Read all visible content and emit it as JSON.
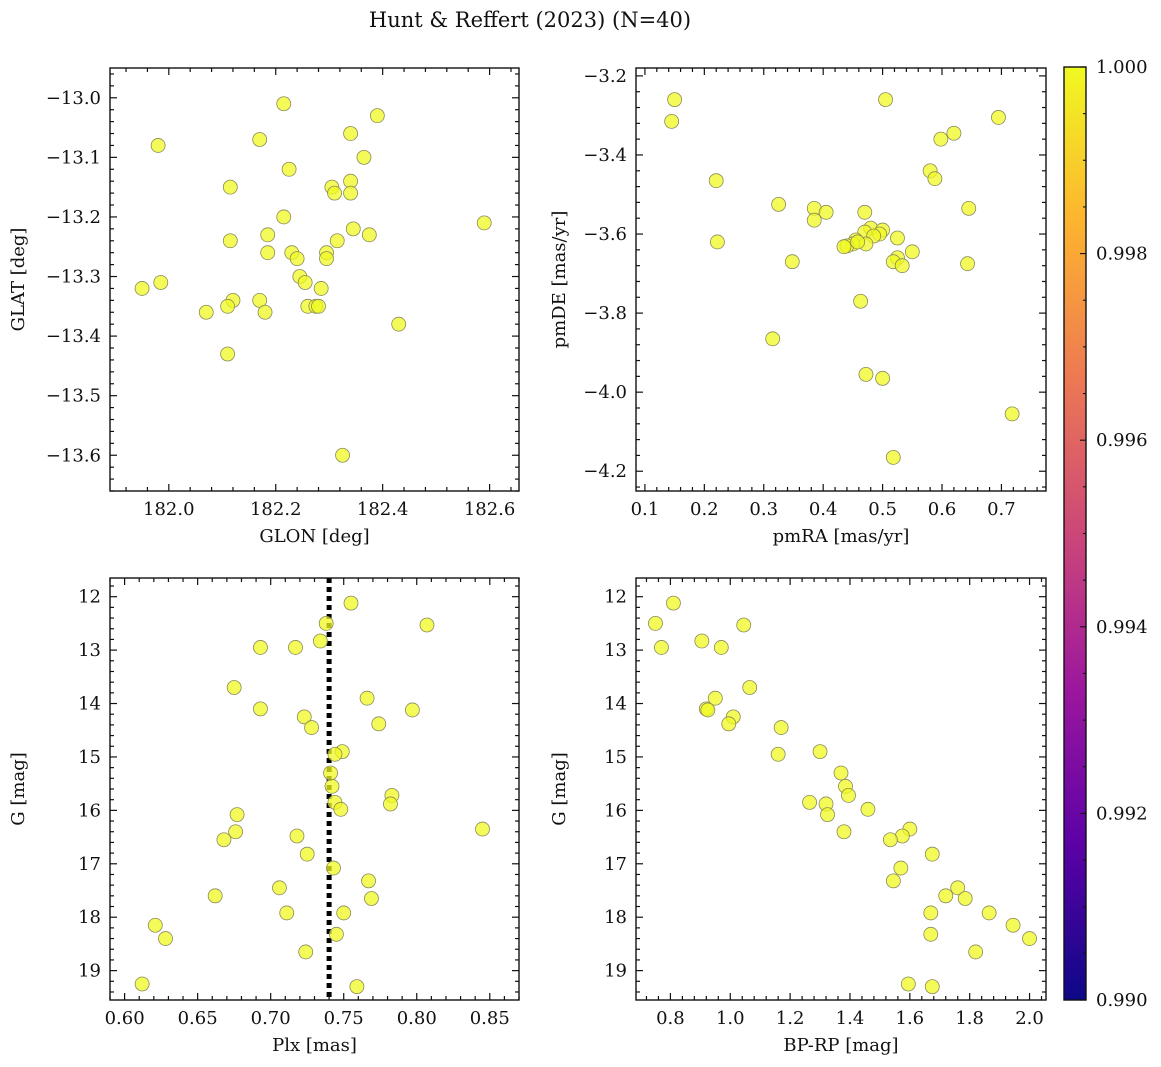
{
  "figure": {
    "title": "Hunt & Reffert (2023) (N=40)"
  },
  "colorbar": {
    "range": [
      0.99,
      1.0
    ],
    "ticks": [
      "1.000",
      "0.998",
      "0.996",
      "0.994",
      "0.992",
      "0.990"
    ],
    "tick_values": [
      1.0,
      0.998,
      0.996,
      0.994,
      0.992,
      0.99
    ],
    "colors": [
      "#f0f921",
      "#fdb32f",
      "#ed7953",
      "#cc4778",
      "#9c179e",
      "#5c01a6",
      "#0d0887"
    ]
  },
  "marker": {
    "color": "#f0f921",
    "edge": "#8a8a5a",
    "alpha": 0.75
  },
  "chart_data": [
    {
      "type": "scatter",
      "xlabel": "GLON [deg]",
      "ylabel": "GLAT [deg]",
      "xlim": [
        181.89,
        182.655
      ],
      "ylim": [
        -13.66,
        -12.95
      ],
      "xticks": [
        182.0,
        182.2,
        182.4,
        182.6
      ],
      "xtick_labels": [
        "182.0",
        "182.2",
        "182.4",
        "182.6"
      ],
      "yticks": [
        -13.0,
        -13.1,
        -13.2,
        -13.3,
        -13.4,
        -13.5,
        -13.6
      ],
      "ytick_labels": [
        "−13.0",
        "−13.1",
        "−13.2",
        "−13.3",
        "−13.4",
        "−13.5",
        "−13.6"
      ],
      "points": [
        [
          182.215,
          -13.01
        ],
        [
          182.39,
          -13.03
        ],
        [
          182.34,
          -13.06
        ],
        [
          182.17,
          -13.07
        ],
        [
          181.98,
          -13.08
        ],
        [
          182.365,
          -13.1
        ],
        [
          182.225,
          -13.12
        ],
        [
          182.115,
          -13.15
        ],
        [
          182.305,
          -13.15
        ],
        [
          182.34,
          -13.14
        ],
        [
          182.31,
          -13.16
        ],
        [
          182.34,
          -13.16
        ],
        [
          182.215,
          -13.2
        ],
        [
          182.59,
          -13.21
        ],
        [
          182.345,
          -13.22
        ],
        [
          182.185,
          -13.23
        ],
        [
          182.375,
          -13.23
        ],
        [
          182.115,
          -13.24
        ],
        [
          182.315,
          -13.24
        ],
        [
          182.185,
          -13.26
        ],
        [
          182.23,
          -13.26
        ],
        [
          182.295,
          -13.26
        ],
        [
          182.24,
          -13.27
        ],
        [
          182.295,
          -13.27
        ],
        [
          182.245,
          -13.3
        ],
        [
          182.255,
          -13.31
        ],
        [
          181.985,
          -13.31
        ],
        [
          182.285,
          -13.32
        ],
        [
          181.95,
          -13.32
        ],
        [
          182.12,
          -13.34
        ],
        [
          182.17,
          -13.34
        ],
        [
          182.11,
          -13.35
        ],
        [
          182.26,
          -13.35
        ],
        [
          182.275,
          -13.35
        ],
        [
          182.28,
          -13.35
        ],
        [
          182.07,
          -13.36
        ],
        [
          182.18,
          -13.36
        ],
        [
          182.43,
          -13.38
        ],
        [
          182.11,
          -13.43
        ],
        [
          182.325,
          -13.6
        ]
      ]
    },
    {
      "type": "scatter",
      "xlabel": "pmRA [mas/yr]",
      "ylabel": "pmDE [mas/yr]",
      "xlim": [
        0.085,
        0.775
      ],
      "ylim": [
        -4.25,
        -3.18
      ],
      "xticks": [
        0.1,
        0.2,
        0.3,
        0.4,
        0.5,
        0.6,
        0.7
      ],
      "xtick_labels": [
        "0.1",
        "0.2",
        "0.3",
        "0.4",
        "0.5",
        "0.6",
        "0.7"
      ],
      "yticks": [
        -3.2,
        -3.4,
        -3.6,
        -3.8,
        -4.0,
        -4.2
      ],
      "ytick_labels": [
        "−3.2",
        "−3.4",
        "−3.6",
        "−3.8",
        "−4.0",
        "−4.2"
      ],
      "points": [
        [
          0.15,
          -3.26
        ],
        [
          0.505,
          -3.26
        ],
        [
          0.145,
          -3.315
        ],
        [
          0.695,
          -3.305
        ],
        [
          0.62,
          -3.345
        ],
        [
          0.598,
          -3.36
        ],
        [
          0.58,
          -3.44
        ],
        [
          0.588,
          -3.46
        ],
        [
          0.22,
          -3.465
        ],
        [
          0.325,
          -3.525
        ],
        [
          0.385,
          -3.535
        ],
        [
          0.645,
          -3.535
        ],
        [
          0.405,
          -3.545
        ],
        [
          0.47,
          -3.545
        ],
        [
          0.385,
          -3.565
        ],
        [
          0.48,
          -3.585
        ],
        [
          0.5,
          -3.59
        ],
        [
          0.47,
          -3.595
        ],
        [
          0.495,
          -3.6
        ],
        [
          0.485,
          -3.605
        ],
        [
          0.525,
          -3.61
        ],
        [
          0.455,
          -3.615
        ],
        [
          0.222,
          -3.62
        ],
        [
          0.45,
          -3.625
        ],
        [
          0.472,
          -3.625
        ],
        [
          0.44,
          -3.63
        ],
        [
          0.55,
          -3.645
        ],
        [
          0.525,
          -3.66
        ],
        [
          0.518,
          -3.67
        ],
        [
          0.348,
          -3.67
        ],
        [
          0.643,
          -3.675
        ],
        [
          0.533,
          -3.68
        ],
        [
          0.463,
          -3.77
        ],
        [
          0.315,
          -3.865
        ],
        [
          0.472,
          -3.955
        ],
        [
          0.5,
          -3.965
        ],
        [
          0.718,
          -4.055
        ],
        [
          0.518,
          -4.165
        ],
        [
          0.435,
          -3.632
        ],
        [
          0.458,
          -3.62
        ]
      ]
    },
    {
      "type": "scatter",
      "xlabel": "Plx [mas]",
      "ylabel": "G [mag]",
      "xlim": [
        0.59,
        0.87
      ],
      "ylim": [
        19.55,
        11.65
      ],
      "reference_line_x": 0.74,
      "xticks": [
        0.6,
        0.65,
        0.7,
        0.75,
        0.8,
        0.85
      ],
      "xtick_labels": [
        "0.60",
        "0.65",
        "0.70",
        "0.75",
        "0.80",
        "0.85"
      ],
      "yticks": [
        12,
        13,
        14,
        15,
        16,
        17,
        18,
        19
      ],
      "ytick_labels": [
        "12",
        "13",
        "14",
        "15",
        "16",
        "17",
        "18",
        "19"
      ],
      "points": [
        [
          0.755,
          12.12
        ],
        [
          0.738,
          12.5
        ],
        [
          0.807,
          12.53
        ],
        [
          0.734,
          12.83
        ],
        [
          0.693,
          12.95
        ],
        [
          0.717,
          12.95
        ],
        [
          0.675,
          13.7
        ],
        [
          0.766,
          13.9
        ],
        [
          0.693,
          14.1
        ],
        [
          0.797,
          14.12
        ],
        [
          0.723,
          14.25
        ],
        [
          0.774,
          14.38
        ],
        [
          0.728,
          14.45
        ],
        [
          0.749,
          14.9
        ],
        [
          0.744,
          14.95
        ],
        [
          0.741,
          15.3
        ],
        [
          0.742,
          15.55
        ],
        [
          0.783,
          15.72
        ],
        [
          0.744,
          15.85
        ],
        [
          0.782,
          15.88
        ],
        [
          0.748,
          15.98
        ],
        [
          0.677,
          16.08
        ],
        [
          0.845,
          16.35
        ],
        [
          0.676,
          16.4
        ],
        [
          0.718,
          16.48
        ],
        [
          0.668,
          16.55
        ],
        [
          0.725,
          16.82
        ],
        [
          0.743,
          17.08
        ],
        [
          0.767,
          17.32
        ],
        [
          0.706,
          17.45
        ],
        [
          0.662,
          17.6
        ],
        [
          0.769,
          17.65
        ],
        [
          0.711,
          17.92
        ],
        [
          0.75,
          17.92
        ],
        [
          0.621,
          18.15
        ],
        [
          0.745,
          18.32
        ],
        [
          0.628,
          18.4
        ],
        [
          0.724,
          18.65
        ],
        [
          0.612,
          19.25
        ],
        [
          0.759,
          19.3
        ]
      ]
    },
    {
      "type": "scatter",
      "xlabel": "BP-RP [mag]",
      "ylabel": "G [mag]",
      "xlim": [
        0.685,
        2.055
      ],
      "ylim": [
        19.55,
        11.65
      ],
      "xticks": [
        0.8,
        1.0,
        1.2,
        1.4,
        1.6,
        1.8,
        2.0
      ],
      "xtick_labels": [
        "0.8",
        "1.0",
        "1.2",
        "1.4",
        "1.6",
        "1.8",
        "2.0"
      ],
      "yticks": [
        12,
        13,
        14,
        15,
        16,
        17,
        18,
        19
      ],
      "ytick_labels": [
        "12",
        "13",
        "14",
        "15",
        "16",
        "17",
        "18",
        "19"
      ],
      "points": [
        [
          0.81,
          12.12
        ],
        [
          0.75,
          12.5
        ],
        [
          1.045,
          12.53
        ],
        [
          0.905,
          12.83
        ],
        [
          0.77,
          12.95
        ],
        [
          0.97,
          12.95
        ],
        [
          1.065,
          13.7
        ],
        [
          0.95,
          13.9
        ],
        [
          0.92,
          14.1
        ],
        [
          0.925,
          14.12
        ],
        [
          1.01,
          14.25
        ],
        [
          0.995,
          14.38
        ],
        [
          1.17,
          14.45
        ],
        [
          1.16,
          14.95
        ],
        [
          1.3,
          14.9
        ],
        [
          1.37,
          15.3
        ],
        [
          1.385,
          15.55
        ],
        [
          1.395,
          15.72
        ],
        [
          1.265,
          15.85
        ],
        [
          1.32,
          15.88
        ],
        [
          1.46,
          15.98
        ],
        [
          1.325,
          16.08
        ],
        [
          1.6,
          16.35
        ],
        [
          1.38,
          16.4
        ],
        [
          1.575,
          16.48
        ],
        [
          1.535,
          16.55
        ],
        [
          1.675,
          16.82
        ],
        [
          1.57,
          17.08
        ],
        [
          1.545,
          17.32
        ],
        [
          1.76,
          17.45
        ],
        [
          1.72,
          17.6
        ],
        [
          1.785,
          17.65
        ],
        [
          1.67,
          17.92
        ],
        [
          1.865,
          17.92
        ],
        [
          1.945,
          18.15
        ],
        [
          1.67,
          18.32
        ],
        [
          2.0,
          18.4
        ],
        [
          1.82,
          18.65
        ],
        [
          1.595,
          19.25
        ],
        [
          1.675,
          19.3
        ]
      ]
    }
  ]
}
